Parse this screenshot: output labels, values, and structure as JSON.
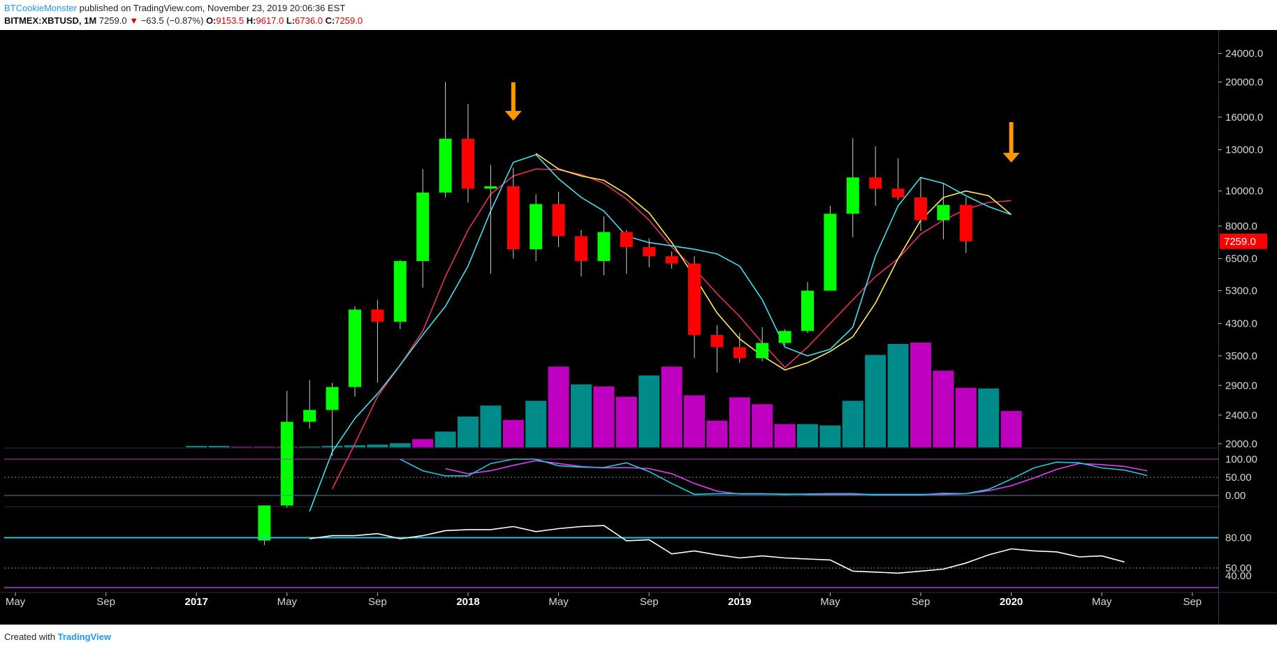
{
  "header": {
    "author": "BTCookieMonster",
    "published": "published on TradingView.com, November 23, 2019 20:06:36 EST",
    "symbol": "BITMEX:XBTUSD, 1M",
    "last": "7259.0",
    "arrow": "▼",
    "change": "−63.5 (−0.87%)",
    "o_label": "O:",
    "o_value": "9153.5",
    "h_label": "H:",
    "h_value": "9617.0",
    "l_label": "L:",
    "l_value": "6736.0",
    "c_label": "C:",
    "c_value": "7259.0"
  },
  "footer": {
    "created": "Created with",
    "brand": "TradingView"
  },
  "colors": {
    "background": "#000000",
    "up": "#00ff00",
    "down": "#ff0000",
    "volume_up": "#008b8b",
    "volume_down": "#c000c0",
    "ma_fast": "#40e0e8",
    "ma_mid": "#ffee58",
    "ma_slow": "#e8305a",
    "arrow": "#ff9800",
    "price_tag": "#ff0000"
  },
  "chart_data": {
    "type": "candlestick",
    "scale": "log",
    "price_axis_ticks": [
      2000,
      2400,
      2900,
      3500,
      4300,
      5300,
      6500,
      8000,
      10000,
      13000,
      16000,
      20000,
      24000
    ],
    "last_price_label": "7259.0",
    "x_axis_labels": [
      {
        "text": "May",
        "year": false,
        "m": 0
      },
      {
        "text": "Sep",
        "year": false,
        "m": 4
      },
      {
        "text": "2017",
        "year": true,
        "m": 8
      },
      {
        "text": "May",
        "year": false,
        "m": 12
      },
      {
        "text": "Sep",
        "year": false,
        "m": 16
      },
      {
        "text": "2018",
        "year": true,
        "m": 20
      },
      {
        "text": "May",
        "year": false,
        "m": 24
      },
      {
        "text": "Sep",
        "year": false,
        "m": 28
      },
      {
        "text": "2019",
        "year": true,
        "m": 32
      },
      {
        "text": "May",
        "year": false,
        "m": 36
      },
      {
        "text": "Sep",
        "year": false,
        "m": 40
      },
      {
        "text": "2020",
        "year": true,
        "m": 44
      },
      {
        "text": "May",
        "year": false,
        "m": 48
      },
      {
        "text": "Sep",
        "year": false,
        "m": 52
      }
    ],
    "candles": [
      {
        "date": "2017-04",
        "o": 1080,
        "h": 1350,
        "l": 1050,
        "c": 1350
      },
      {
        "date": "2017-05",
        "o": 1350,
        "h": 2800,
        "l": 1330,
        "c": 2300
      },
      {
        "date": "2017-06",
        "o": 2300,
        "h": 3000,
        "l": 2200,
        "c": 2480
      },
      {
        "date": "2017-07",
        "o": 2480,
        "h": 2950,
        "l": 1850,
        "c": 2870
      },
      {
        "date": "2017-08",
        "o": 2870,
        "h": 4800,
        "l": 2700,
        "c": 4700
      },
      {
        "date": "2017-09",
        "o": 4700,
        "h": 5000,
        "l": 2950,
        "c": 4350
      },
      {
        "date": "2017-10",
        "o": 4350,
        "h": 6450,
        "l": 4150,
        "c": 6400
      },
      {
        "date": "2017-11",
        "o": 6400,
        "h": 11500,
        "l": 5400,
        "c": 9900
      },
      {
        "date": "2017-12",
        "o": 9900,
        "h": 20000,
        "l": 9600,
        "c": 13950
      },
      {
        "date": "2018-01",
        "o": 13950,
        "h": 17400,
        "l": 9300,
        "c": 10150
      },
      {
        "date": "2018-02",
        "o": 10150,
        "h": 11800,
        "l": 5900,
        "c": 10300
      },
      {
        "date": "2018-03",
        "o": 10300,
        "h": 11600,
        "l": 6500,
        "c": 6900
      },
      {
        "date": "2018-04",
        "o": 6900,
        "h": 9800,
        "l": 6400,
        "c": 9200
      },
      {
        "date": "2018-05",
        "o": 9200,
        "h": 9950,
        "l": 7000,
        "c": 7500
      },
      {
        "date": "2018-06",
        "o": 7500,
        "h": 7800,
        "l": 5800,
        "c": 6400
      },
      {
        "date": "2018-07",
        "o": 6400,
        "h": 8500,
        "l": 5850,
        "c": 7700
      },
      {
        "date": "2018-08",
        "o": 7700,
        "h": 7800,
        "l": 5900,
        "c": 7000
      },
      {
        "date": "2018-09",
        "o": 7000,
        "h": 7400,
        "l": 6150,
        "c": 6600
      },
      {
        "date": "2018-10",
        "o": 6600,
        "h": 6800,
        "l": 6100,
        "c": 6300
      },
      {
        "date": "2018-11",
        "o": 6300,
        "h": 6600,
        "l": 3450,
        "c": 4000
      },
      {
        "date": "2018-12",
        "o": 4000,
        "h": 4250,
        "l": 3150,
        "c": 3700
      },
      {
        "date": "2019-01",
        "o": 3700,
        "h": 4050,
        "l": 3350,
        "c": 3450
      },
      {
        "date": "2019-02",
        "o": 3450,
        "h": 4200,
        "l": 3380,
        "c": 3800
      },
      {
        "date": "2019-03",
        "o": 3800,
        "h": 4150,
        "l": 3750,
        "c": 4100
      },
      {
        "date": "2019-04",
        "o": 4100,
        "h": 5600,
        "l": 4050,
        "c": 5300
      },
      {
        "date": "2019-05",
        "o": 5300,
        "h": 9100,
        "l": 5300,
        "c": 8650
      },
      {
        "date": "2019-06",
        "o": 8650,
        "h": 14000,
        "l": 7450,
        "c": 10900
      },
      {
        "date": "2019-07",
        "o": 10900,
        "h": 13300,
        "l": 9100,
        "c": 10150
      },
      {
        "date": "2019-08",
        "o": 10150,
        "h": 12300,
        "l": 9450,
        "c": 9600
      },
      {
        "date": "2019-09",
        "o": 9600,
        "h": 10900,
        "l": 7750,
        "c": 8300
      },
      {
        "date": "2019-10",
        "o": 8300,
        "h": 10500,
        "l": 7350,
        "c": 9150
      },
      {
        "date": "2019-11",
        "o": 9153.5,
        "h": 9617,
        "l": 6736,
        "c": 7259
      }
    ],
    "volume": [
      {
        "m": 8,
        "v": 2,
        "up": true
      },
      {
        "m": 9,
        "v": 2,
        "up": true
      },
      {
        "m": 10,
        "v": 1,
        "up": false
      },
      {
        "m": 11,
        "v": 1,
        "up": false
      },
      {
        "m": 12,
        "v": 1,
        "up": false
      },
      {
        "m": 13,
        "v": 1,
        "up": true
      },
      {
        "m": 14,
        "v": 2,
        "up": true
      },
      {
        "m": 15,
        "v": 3,
        "up": true
      },
      {
        "m": 16,
        "v": 4,
        "up": true
      },
      {
        "m": 17,
        "v": 6,
        "up": true
      },
      {
        "m": 18,
        "v": 12,
        "up": false
      },
      {
        "m": 19,
        "v": 23,
        "up": true
      },
      {
        "m": 20,
        "v": 45,
        "up": true
      },
      {
        "m": 21,
        "v": 61,
        "up": true
      },
      {
        "m": 22,
        "v": 40,
        "up": false
      },
      {
        "m": 23,
        "v": 68,
        "up": true
      },
      {
        "m": 24,
        "v": 118,
        "up": false
      },
      {
        "m": 25,
        "v": 92,
        "up": true
      },
      {
        "m": 26,
        "v": 89,
        "up": false
      },
      {
        "m": 27,
        "v": 74,
        "up": false
      },
      {
        "m": 28,
        "v": 105,
        "up": true
      },
      {
        "m": 29,
        "v": 118,
        "up": false
      },
      {
        "m": 30,
        "v": 76,
        "up": false
      },
      {
        "m": 31,
        "v": 39,
        "up": false
      },
      {
        "m": 32,
        "v": 73,
        "up": false
      },
      {
        "m": 33,
        "v": 63,
        "up": false
      },
      {
        "m": 34,
        "v": 34,
        "up": false
      },
      {
        "m": 35,
        "v": 34,
        "up": true
      },
      {
        "m": 36,
        "v": 32,
        "up": true
      },
      {
        "m": 37,
        "v": 68,
        "up": true
      },
      {
        "m": 38,
        "v": 135,
        "up": true
      },
      {
        "m": 39,
        "v": 151,
        "up": true
      },
      {
        "m": 40,
        "v": 153,
        "up": false
      },
      {
        "m": 41,
        "v": 112,
        "up": false
      },
      {
        "m": 42,
        "v": 87,
        "up": false
      },
      {
        "m": 43,
        "v": 86,
        "up": true
      },
      {
        "m": 44,
        "v": 53,
        "up": false
      }
    ],
    "ma_fast": [
      [
        13,
        1300
      ],
      [
        14,
        1900
      ],
      [
        15,
        2350
      ],
      [
        16,
        2750
      ],
      [
        17,
        3300
      ],
      [
        18,
        4000
      ],
      [
        19,
        4800
      ],
      [
        20,
        6200
      ],
      [
        21,
        8800
      ],
      [
        22,
        12000
      ],
      [
        23,
        12600
      ],
      [
        24,
        10800
      ],
      [
        25,
        9600
      ],
      [
        26,
        8800
      ],
      [
        27,
        7500
      ],
      [
        28,
        7200
      ],
      [
        29,
        7050
      ],
      [
        30,
        6900
      ],
      [
        31,
        6700
      ],
      [
        32,
        6200
      ],
      [
        33,
        5000
      ],
      [
        34,
        3700
      ],
      [
        35,
        3500
      ],
      [
        36,
        3650
      ],
      [
        37,
        4200
      ],
      [
        38,
        6600
      ],
      [
        39,
        9100
      ],
      [
        40,
        10900
      ],
      [
        41,
        10500
      ],
      [
        42,
        9700
      ],
      [
        43,
        9050
      ],
      [
        44,
        8600
      ]
    ],
    "ma_mid": [
      [
        23,
        12700
      ],
      [
        24,
        11500
      ],
      [
        25,
        11000
      ],
      [
        26,
        10700
      ],
      [
        27,
        9800
      ],
      [
        28,
        8700
      ],
      [
        29,
        7200
      ],
      [
        30,
        5800
      ],
      [
        31,
        4600
      ],
      [
        32,
        3900
      ],
      [
        33,
        3500
      ],
      [
        34,
        3200
      ],
      [
        35,
        3350
      ],
      [
        36,
        3600
      ],
      [
        37,
        3950
      ],
      [
        38,
        4900
      ],
      [
        39,
        6500
      ],
      [
        40,
        8300
      ],
      [
        41,
        9600
      ],
      [
        42,
        10000
      ],
      [
        43,
        9700
      ],
      [
        44,
        8600
      ]
    ],
    "ma_slow": [
      [
        14,
        1500
      ],
      [
        15,
        2000
      ],
      [
        16,
        2700
      ],
      [
        17,
        3300
      ],
      [
        18,
        4100
      ],
      [
        19,
        5800
      ],
      [
        20,
        7800
      ],
      [
        21,
        9800
      ],
      [
        22,
        11000
      ],
      [
        23,
        11500
      ],
      [
        24,
        11450
      ],
      [
        25,
        11100
      ],
      [
        26,
        10500
      ],
      [
        27,
        9500
      ],
      [
        28,
        8300
      ],
      [
        29,
        7000
      ],
      [
        30,
        6100
      ],
      [
        31,
        5200
      ],
      [
        32,
        4500
      ],
      [
        33,
        3800
      ],
      [
        34,
        3250
      ],
      [
        35,
        3700
      ],
      [
        36,
        4300
      ],
      [
        37,
        5000
      ],
      [
        38,
        5800
      ],
      [
        39,
        6500
      ],
      [
        40,
        7600
      ],
      [
        41,
        8300
      ],
      [
        42,
        8900
      ],
      [
        43,
        9300
      ],
      [
        44,
        9400
      ]
    ],
    "stoch_rsi": {
      "levels": [
        100,
        50,
        0
      ],
      "k": [
        [
          17,
          100
        ],
        [
          18,
          68
        ],
        [
          19,
          54
        ],
        [
          20,
          54
        ],
        [
          21,
          88
        ],
        [
          22,
          100
        ],
        [
          23,
          100
        ],
        [
          24,
          82
        ],
        [
          25,
          78
        ],
        [
          26,
          77
        ],
        [
          27,
          90
        ],
        [
          28,
          66
        ],
        [
          29,
          33
        ],
        [
          30,
          3
        ],
        [
          31,
          5
        ],
        [
          32,
          5
        ],
        [
          33,
          5
        ],
        [
          34,
          3
        ],
        [
          35,
          4
        ],
        [
          36,
          5
        ],
        [
          37,
          5
        ],
        [
          38,
          2
        ],
        [
          39,
          2
        ],
        [
          40,
          2
        ],
        [
          41,
          6
        ],
        [
          42,
          5
        ],
        [
          43,
          17
        ],
        [
          44,
          45
        ],
        [
          45,
          76
        ],
        [
          46,
          92
        ],
        [
          47,
          90
        ],
        [
          48,
          76
        ],
        [
          49,
          70
        ],
        [
          50,
          55
        ]
      ],
      "d": [
        [
          19,
          74
        ],
        [
          20,
          60
        ],
        [
          21,
          68
        ],
        [
          22,
          83
        ],
        [
          23,
          96
        ],
        [
          24,
          88
        ],
        [
          25,
          80
        ],
        [
          26,
          76
        ],
        [
          27,
          77
        ],
        [
          28,
          74
        ],
        [
          29,
          60
        ],
        [
          30,
          33
        ],
        [
          31,
          12
        ],
        [
          32,
          4
        ],
        [
          33,
          4
        ],
        [
          34,
          4
        ],
        [
          35,
          3
        ],
        [
          36,
          3
        ],
        [
          37,
          3
        ],
        [
          38,
          3
        ],
        [
          39,
          3
        ],
        [
          40,
          3
        ],
        [
          41,
          3
        ],
        [
          42,
          5
        ],
        [
          43,
          13
        ],
        [
          44,
          27
        ],
        [
          45,
          48
        ],
        [
          46,
          72
        ],
        [
          47,
          88
        ],
        [
          48,
          85
        ],
        [
          49,
          80
        ],
        [
          50,
          68
        ]
      ]
    },
    "rsi": {
      "upper": 80,
      "mid": 50,
      "lower": 40,
      "values": [
        [
          13,
          79
        ],
        [
          14,
          82
        ],
        [
          15,
          82
        ],
        [
          16,
          84
        ],
        [
          17,
          79
        ],
        [
          18,
          82
        ],
        [
          19,
          87
        ],
        [
          20,
          88
        ],
        [
          21,
          88
        ],
        [
          22,
          91
        ],
        [
          23,
          86
        ],
        [
          24,
          89
        ],
        [
          25,
          91
        ],
        [
          26,
          92
        ],
        [
          27,
          77
        ],
        [
          28,
          78
        ],
        [
          29,
          64
        ],
        [
          30,
          67
        ],
        [
          31,
          63
        ],
        [
          32,
          60
        ],
        [
          33,
          62
        ],
        [
          34,
          60
        ],
        [
          35,
          59
        ],
        [
          36,
          58
        ],
        [
          37,
          47
        ],
        [
          38,
          46
        ],
        [
          39,
          45
        ],
        [
          40,
          47
        ],
        [
          41,
          49
        ],
        [
          42,
          55
        ],
        [
          43,
          63
        ],
        [
          44,
          69
        ],
        [
          45,
          67
        ],
        [
          46,
          66
        ],
        [
          47,
          61
        ],
        [
          48,
          62
        ],
        [
          49,
          56
        ]
      ]
    }
  }
}
